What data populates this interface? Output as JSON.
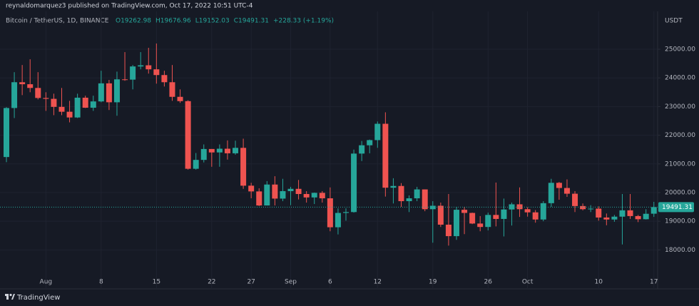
{
  "header": {
    "publisher": "reynaldomarquez3 published on TradingView.com, Oct 17, 2022 10:51 UTC-4",
    "brand": "TradingView"
  },
  "chart_data": {
    "type": "candlestick",
    "title": "Bitcoin / TetherUS, 1D, BINANCE",
    "legend_values": [
      "O19262.98",
      "H19676.96",
      "L19152.03",
      "C19491.31",
      "+228.33 (+1.19%)"
    ],
    "y_unit": "USDT",
    "up_color": "#26a69a",
    "down_color": "#ef5350",
    "grid": true,
    "categories": [
      null,
      null,
      null,
      null,
      null,
      "Aug",
      null,
      null,
      null,
      null,
      null,
      null,
      "8",
      null,
      null,
      null,
      null,
      null,
      null,
      "15",
      null,
      null,
      null,
      null,
      null,
      null,
      "22",
      null,
      null,
      null,
      null,
      "27",
      null,
      null,
      null,
      null,
      "Sep",
      null,
      null,
      null,
      null,
      "6",
      null,
      null,
      null,
      null,
      null,
      "12",
      null,
      null,
      null,
      null,
      null,
      null,
      "19",
      null,
      null,
      null,
      null,
      null,
      null,
      "26",
      null,
      null,
      null,
      null,
      "Oct",
      null,
      null,
      null,
      null,
      null,
      null,
      null,
      null,
      "10",
      null,
      null,
      null,
      null,
      null,
      null,
      "17"
    ],
    "open": [
      21240,
      22950,
      23850,
      23780,
      23650,
      23300,
      23270,
      22990,
      22820,
      22620,
      23310,
      22960,
      23180,
      23810,
      23150,
      23950,
      23940,
      24400,
      24440,
      24300,
      24100,
      23850,
      23340,
      23190,
      20830,
      21140,
      21520,
      21400,
      21530,
      21370,
      21560,
      20240,
      20040,
      19550,
      20280,
      19790,
      20050,
      20130,
      19950,
      19830,
      19990,
      19800,
      18790,
      19290,
      19320,
      21360,
      21650,
      21830,
      22400,
      20170,
      20230,
      19700,
      19800,
      20110,
      19420,
      19540,
      18880,
      18480,
      19400,
      19290,
      18920,
      18800,
      19220,
      19080,
      19410,
      19590,
      19420,
      19310,
      19060,
      19630,
      20340,
      20160,
      19960,
      19530,
      19420,
      19440,
      19130,
      19060,
      19160,
      19380,
      19180,
      19070,
      19262.98
    ],
    "high": [
      22980,
      24200,
      24450,
      24650,
      24200,
      23500,
      23450,
      23650,
      23200,
      23450,
      23380,
      23380,
      24250,
      23930,
      24220,
      24900,
      24450,
      24900,
      25050,
      25200,
      24250,
      24450,
      23600,
      23220,
      21380,
      21680,
      21520,
      21680,
      21820,
      21810,
      21880,
      20340,
      20150,
      20400,
      20570,
      20480,
      20200,
      20440,
      20050,
      20000,
      20050,
      20180,
      19450,
      19450,
      21500,
      21800,
      21850,
      22480,
      22800,
      20500,
      20330,
      19900,
      20200,
      20110,
      19700,
      19650,
      19950,
      19500,
      19500,
      19300,
      19180,
      19300,
      20350,
      19790,
      19650,
      20180,
      19490,
      19390,
      19700,
      20480,
      20370,
      20460,
      20050,
      19620,
      19560,
      19520,
      19270,
      19220,
      19950,
      19950,
      19220,
      19420,
      19676.96
    ],
    "low": [
      21060,
      22600,
      23400,
      23500,
      23250,
      22850,
      22700,
      22700,
      22450,
      22600,
      22950,
      22850,
      23150,
      22880,
      22680,
      23900,
      23600,
      24300,
      24150,
      23800,
      23700,
      23200,
      23130,
      20800,
      20800,
      21050,
      20900,
      20900,
      21150,
      21320,
      20130,
      19800,
      19530,
      19550,
      19550,
      19700,
      19560,
      19760,
      19650,
      19600,
      19650,
      18650,
      18540,
      19020,
      19300,
      21100,
      21370,
      21560,
      19860,
      19620,
      19500,
      19320,
      19700,
      19350,
      18250,
      18800,
      18150,
      18350,
      18550,
      18900,
      18650,
      18680,
      18820,
      18470,
      18850,
      19150,
      19160,
      18950,
      19000,
      19500,
      19750,
      19850,
      19320,
      19380,
      19320,
      19020,
      18860,
      18980,
      18190,
      19080,
      18970,
      19060,
      19152.03
    ],
    "close": [
      22950,
      23850,
      23780,
      23650,
      23300,
      23270,
      22990,
      22820,
      22620,
      23310,
      22960,
      23180,
      23810,
      23150,
      23950,
      23940,
      24400,
      24440,
      24300,
      24100,
      23850,
      23340,
      23190,
      20830,
      21140,
      21520,
      21400,
      21530,
      21370,
      21560,
      20240,
      20040,
      19550,
      20280,
      19790,
      20050,
      20130,
      19950,
      19830,
      19990,
      19800,
      18790,
      19290,
      19320,
      21360,
      21650,
      21830,
      22400,
      20170,
      20230,
      19700,
      19800,
      20110,
      19420,
      19540,
      18880,
      18480,
      19400,
      19290,
      18920,
      18800,
      19220,
      19080,
      19410,
      19590,
      19420,
      19310,
      19060,
      19630,
      20340,
      20160,
      19960,
      19530,
      19420,
      19440,
      19130,
      19060,
      19160,
      19380,
      19180,
      19070,
      19260,
      19491.31
    ],
    "ylim": [
      16640,
      26320
    ],
    "yticks": [
      {
        "value": 18000,
        "label": "18000.00"
      },
      {
        "value": 19000,
        "label": "19000.00"
      },
      {
        "value": 20000,
        "label": "20000.00"
      },
      {
        "value": 21000,
        "label": "21000.00"
      },
      {
        "value": 22000,
        "label": "22000.00"
      },
      {
        "value": 23000,
        "label": "23000.00"
      },
      {
        "value": 24000,
        "label": "24000.00"
      },
      {
        "value": 25000,
        "label": "25000.00"
      }
    ]
  }
}
